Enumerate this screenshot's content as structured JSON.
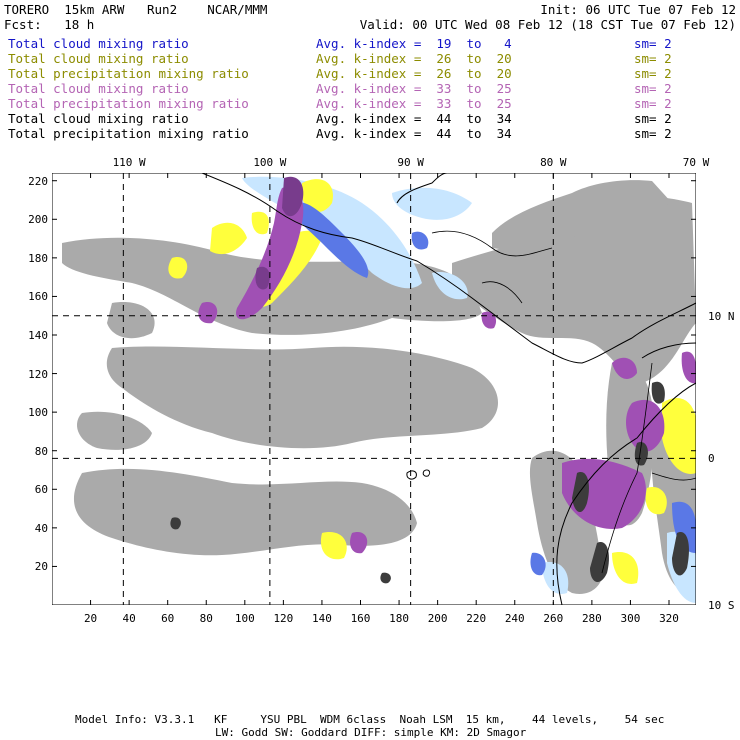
{
  "header": {
    "line1_left": "TORERO  15km ARW   Run2    NCAR/MMM",
    "line1_right": "Init: 06 UTC Tue 07 Feb 12",
    "line2_left": "Fcst:   18 h",
    "line2_right": "Valid: 00 UTC Wed 08 Feb 12 (18 CST Tue 07 Feb 12)"
  },
  "legend": [
    {
      "field": "Total cloud mixing ratio",
      "kindex": "Avg. k-index =  19  to   4",
      "sm": "sm= 2",
      "color": "#1414c8"
    },
    {
      "field": "Total cloud mixing ratio",
      "kindex": "Avg. k-index =  26  to  20",
      "sm": "sm= 2",
      "color": "#8c8c00"
    },
    {
      "field": "Total precipitation mixing ratio",
      "kindex": "Avg. k-index =  26  to  20",
      "sm": "sm= 2",
      "color": "#8c8c00"
    },
    {
      "field": "Total cloud mixing ratio",
      "kindex": "Avg. k-index =  33  to  25",
      "sm": "sm= 2",
      "color": "#b464b4"
    },
    {
      "field": "Total precipitation mixing ratio",
      "kindex": "Avg. k-index =  33  to  25",
      "sm": "sm= 2",
      "color": "#b464b4"
    },
    {
      "field": "Total cloud mixing ratio",
      "kindex": "Avg. k-index =  44  to  34",
      "sm": "sm= 2",
      "color": "#000000"
    },
    {
      "field": "Total precipitation mixing ratio",
      "kindex": "Avg. k-index =  44  to  34",
      "sm": "sm= 2",
      "color": "#000000"
    }
  ],
  "map": {
    "x_ticks": [
      20,
      40,
      60,
      80,
      100,
      120,
      140,
      160,
      180,
      200,
      220,
      240,
      260,
      280,
      300,
      320
    ],
    "y_ticks": [
      20,
      40,
      60,
      80,
      100,
      120,
      140,
      160,
      180,
      200,
      220
    ],
    "x_range": [
      0,
      334
    ],
    "y_range": [
      0,
      224
    ],
    "lon_labels": [
      {
        "text": "110 W",
        "x": 40
      },
      {
        "text": "100 W",
        "x": 113
      },
      {
        "text": "90 W",
        "x": 186
      },
      {
        "text": "80 W",
        "x": 260
      },
      {
        "text": "70 W",
        "x": 334
      }
    ],
    "lat_labels": [
      {
        "text": "10 N",
        "y": 150
      },
      {
        "text": "0",
        "y": 76
      },
      {
        "text": "10 S",
        "y": 0
      }
    ],
    "grid_lon_x": [
      37,
      113,
      186,
      260
    ],
    "grid_lat_y": [
      150,
      76
    ],
    "colors": {
      "gray": "#aaaaaa",
      "yellow": "#ffff3c",
      "light_blue": "#c8e6ff",
      "blue": "#5a78e6",
      "purple": "#a050b4",
      "dark_purple": "#783c8c",
      "black_core": "#3c3c3c"
    }
  },
  "footer": {
    "line1": "Model Info: V3.3.1   KF     YSU PBL  WDM 6class  Noah LSM  15 km,    44 levels,    54 sec",
    "line2": "LW: Godd SW: Goddard DIFF: simple KM: 2D Smagor"
  }
}
